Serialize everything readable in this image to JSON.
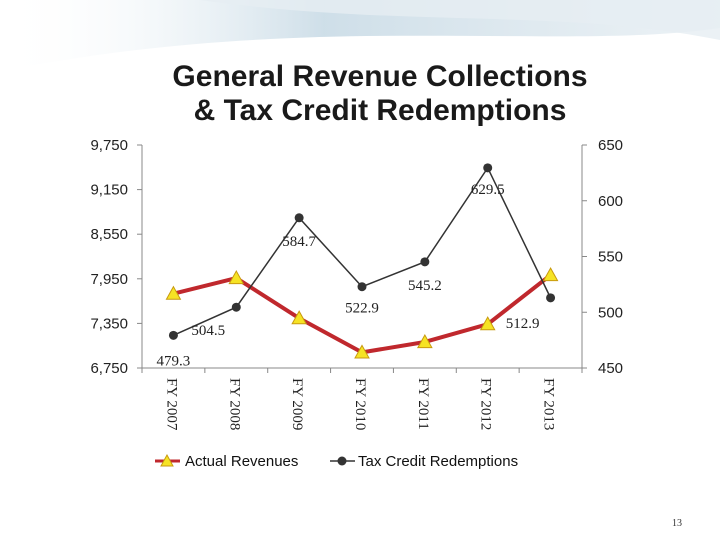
{
  "slide": {
    "title_line1": "General Revenue Collections",
    "title_line2": "& Tax Credit Redemptions",
    "page_number": "13"
  },
  "colors": {
    "revenue_line": "#c0282d",
    "revenue_marker": "#f6e324",
    "redemption_line": "#333333",
    "redemption_marker": "#333333",
    "banner": "#c9dbe6"
  },
  "chart_data": {
    "type": "line",
    "title": "General Revenue Collections & Tax Credit Redemptions",
    "categories": [
      "FY 2007",
      "FY 2008",
      "FY 2009",
      "FY 2010",
      "FY 2011",
      "FY 2012",
      "FY 2013"
    ],
    "left_axis": {
      "range": [
        6750,
        9750
      ],
      "ticks": [
        6750,
        7350,
        7950,
        8550,
        9150,
        9750
      ],
      "tick_labels": [
        "6,750",
        "7,350",
        "7,950",
        "8,550",
        "9,150",
        "9,750"
      ]
    },
    "right_axis": {
      "range": [
        450,
        650
      ],
      "ticks": [
        450,
        500,
        550,
        600,
        650
      ],
      "tick_labels": [
        "450",
        "500",
        "550",
        "600",
        "650"
      ]
    },
    "series": [
      {
        "name": "Actual Revenues",
        "axis": "left",
        "values": [
          7750,
          7960,
          7420,
          6960,
          7100,
          7340,
          8000
        ]
      },
      {
        "name": "Tax Credit Redemptions",
        "axis": "right",
        "values": [
          479.3,
          504.5,
          584.7,
          522.9,
          545.2,
          629.5,
          512.9
        ],
        "data_labels": [
          "479.3",
          "504.5",
          "584.7",
          "522.9",
          "545.2",
          "629.5",
          "512.9"
        ]
      }
    ],
    "grid": false,
    "legend_position": "bottom"
  }
}
